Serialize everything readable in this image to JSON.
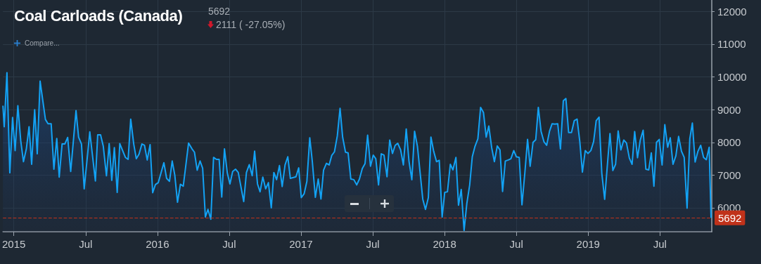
{
  "chart_data": {
    "type": "area",
    "title": "Coal Carloads (Canada)",
    "annotations": [
      "5692",
      "2111 ( -27.05%)",
      "Compare..."
    ],
    "x": [
      2014.924,
      2014.933,
      2014.952,
      2014.972,
      2014.991,
      2015.009,
      2015.028,
      2015.048,
      2015.067,
      2015.087,
      2015.106,
      2015.124,
      2015.145,
      2015.163,
      2015.183,
      2015.22,
      2015.238,
      2015.26,
      2015.279,
      2015.299,
      2015.316,
      2015.336,
      2015.355,
      2015.375,
      2015.396,
      2015.433,
      2015.451,
      2015.471,
      2015.49,
      2015.529,
      2015.568,
      2015.584,
      2015.604,
      2015.623,
      2015.645,
      2015.664,
      2015.682,
      2015.7,
      2015.72,
      2015.738,
      2015.777,
      2015.796,
      2015.814,
      2015.835,
      2015.853,
      2015.872,
      2015.892,
      2015.91,
      2015.929,
      2015.949,
      2015.967,
      2015.986,
      2016.006,
      2016.045,
      2016.064,
      2016.084,
      2016.103,
      2016.121,
      2016.14,
      2016.16,
      2016.18,
      2016.217,
      2016.241,
      2016.258,
      2016.277,
      2016.297,
      2016.315,
      2016.334,
      2016.352,
      2016.372,
      2016.391,
      2016.411,
      2016.43,
      2016.448,
      2016.467,
      2016.487,
      2016.505,
      2016.524,
      2016.544,
      2016.563,
      2016.601,
      2016.62,
      2016.64,
      2016.66,
      2016.677,
      2016.697,
      2016.715,
      2016.734,
      2016.754,
      2016.773,
      2016.793,
      2016.811,
      2016.83,
      2016.85,
      2016.869,
      2016.889,
      2016.908,
      2016.926,
      2016.965,
      2016.984,
      2017.002,
      2017.022,
      2017.041,
      2017.061,
      2017.079,
      2017.1,
      2017.12,
      2017.139,
      2017.157,
      2017.177,
      2017.196,
      2017.214,
      2017.233,
      2017.253,
      2017.272,
      2017.29,
      2017.31,
      2017.328,
      2017.347,
      2017.368,
      2017.388,
      2017.407,
      2017.427,
      2017.446,
      2017.464,
      2017.484,
      2017.503,
      2017.521,
      2017.54,
      2017.559,
      2017.578,
      2017.599,
      2017.618,
      2017.637,
      2017.656,
      2017.674,
      2017.694,
      2017.713,
      2017.733,
      2017.752,
      2017.772,
      2017.791,
      2017.811,
      2017.83,
      2017.848,
      2017.867,
      2017.887,
      2017.905,
      2017.924,
      2017.944,
      2017.963,
      2017.983,
      2018.001,
      2018.02,
      2018.04,
      2018.058,
      2018.079,
      2018.097,
      2018.116,
      2018.136,
      2018.155,
      2018.175,
      2018.193,
      2018.212,
      2018.232,
      2018.251,
      2018.271,
      2018.29,
      2018.308,
      2018.328,
      2018.347,
      2018.367,
      2018.386,
      2018.404,
      2018.423,
      2018.443,
      2018.462,
      2018.482,
      2018.5,
      2018.52,
      2018.539,
      2018.559,
      2018.578,
      2018.596,
      2018.616,
      2018.635,
      2018.653,
      2018.672,
      2018.692,
      2018.711,
      2018.731,
      2018.749,
      2018.768,
      2018.788,
      2018.807,
      2018.827,
      2018.845,
      2018.864,
      2018.884,
      2018.903,
      2018.923,
      2018.942,
      2018.96,
      2018.98,
      2018.999,
      2019.019,
      2019.038,
      2019.056,
      2019.076,
      2019.095,
      2019.115,
      2019.134,
      2019.152,
      2019.172,
      2019.191,
      2019.209,
      2019.228,
      2019.248,
      2019.267,
      2019.287,
      2019.306,
      2019.324,
      2019.344,
      2019.363,
      2019.383,
      2019.402,
      2019.422,
      2019.44,
      2019.458,
      2019.476,
      2019.495,
      2019.515,
      2019.534,
      2019.554,
      2019.572,
      2019.591,
      2019.611,
      2019.63,
      2019.65,
      2019.669,
      2019.689,
      2019.708,
      2019.726,
      2019.745,
      2019.765,
      2019.784,
      2019.804,
      2019.823,
      2019.843,
      2019.856
    ],
    "series": [
      {
        "color": "#13a2f4",
        "values": [
          9120,
          8480,
          10130,
          7070,
          8760,
          7750,
          9120,
          8050,
          7410,
          7800,
          8480,
          7330,
          9000,
          7650,
          9870,
          8700,
          8570,
          8570,
          7180,
          8120,
          6940,
          7950,
          7950,
          8150,
          7110,
          8970,
          8160,
          7950,
          6580,
          8320,
          6820,
          8230,
          8230,
          7880,
          6980,
          7960,
          6840,
          7840,
          6470,
          7960,
          7540,
          7480,
          8710,
          7950,
          7500,
          7640,
          7950,
          7910,
          7460,
          7930,
          6460,
          6710,
          6770,
          7380,
          6900,
          6810,
          7430,
          7000,
          6170,
          6720,
          6660,
          7980,
          7800,
          7700,
          7150,
          7430,
          7210,
          5720,
          5950,
          5650,
          7540,
          7480,
          7480,
          6330,
          7800,
          7060,
          6730,
          7110,
          7180,
          7080,
          6190,
          7080,
          7320,
          6980,
          7730,
          6730,
          6490,
          6940,
          6580,
          6770,
          6000,
          7080,
          6860,
          7290,
          6650,
          7310,
          7560,
          6900,
          6950,
          7220,
          6310,
          6430,
          6810,
          8140,
          7410,
          6320,
          6880,
          6270,
          7150,
          7360,
          7310,
          7600,
          7710,
          8200,
          9040,
          8160,
          7700,
          7680,
          6880,
          6860,
          6700,
          6880,
          7200,
          7350,
          8220,
          7270,
          7610,
          7500,
          6700,
          7650,
          7610,
          6950,
          8070,
          7660,
          7910,
          7970,
          7770,
          7310,
          8410,
          7430,
          6860,
          8340,
          7880,
          7060,
          6270,
          5950,
          6310,
          8160,
          7730,
          7410,
          7450,
          5720,
          6470,
          6490,
          7330,
          7160,
          7540,
          6080,
          6560,
          5310,
          6130,
          6700,
          7560,
          7880,
          8110,
          9070,
          8910,
          8160,
          8500,
          7840,
          7410,
          7890,
          7770,
          6500,
          7430,
          7460,
          7500,
          7750,
          7560,
          7540,
          6090,
          7060,
          8090,
          7270,
          8000,
          8080,
          9070,
          8340,
          8020,
          7910,
          8340,
          8570,
          8560,
          8570,
          7800,
          9270,
          9340,
          8300,
          8300,
          8660,
          8710,
          8020,
          7090,
          7750,
          7660,
          7750,
          8020,
          8660,
          8770,
          7060,
          6260,
          7310,
          8270,
          7140,
          7330,
          8350,
          7770,
          8070,
          7980,
          7520,
          7330,
          8330,
          7530,
          8070,
          8370,
          7180,
          7160,
          7680,
          6660,
          8000,
          8090,
          7310,
          8540,
          7850,
          8140,
          7330,
          7590,
          8180,
          7730,
          7540,
          5990,
          8110,
          8590,
          7400,
          7730,
          7910,
          7540,
          7470,
          7850,
          5692
        ]
      }
    ],
    "xlim": [
      2014.924,
      2019.861
    ],
    "xticks": [
      2015,
      {
        "value": 2015.5,
        "label": "Jul"
      },
      2016,
      {
        "value": 2016.5,
        "label": "Jul"
      },
      2017,
      {
        "value": 2017.5,
        "label": "Jul"
      },
      2018,
      {
        "value": 2018.5,
        "label": "Jul"
      },
      2019,
      {
        "value": 2019.5,
        "label": "Jul"
      }
    ],
    "ylim": [
      5270,
      12350
    ],
    "yticks": [
      6000,
      7000,
      8000,
      9000,
      10000,
      11000,
      12000
    ],
    "ref_lines": [
      {
        "axis": "y",
        "value": 5692,
        "label": "5692",
        "color": "#c0321a",
        "line_style": "dashed"
      }
    ],
    "grid": true,
    "marker": "none",
    "line_style": "solid"
  }
}
